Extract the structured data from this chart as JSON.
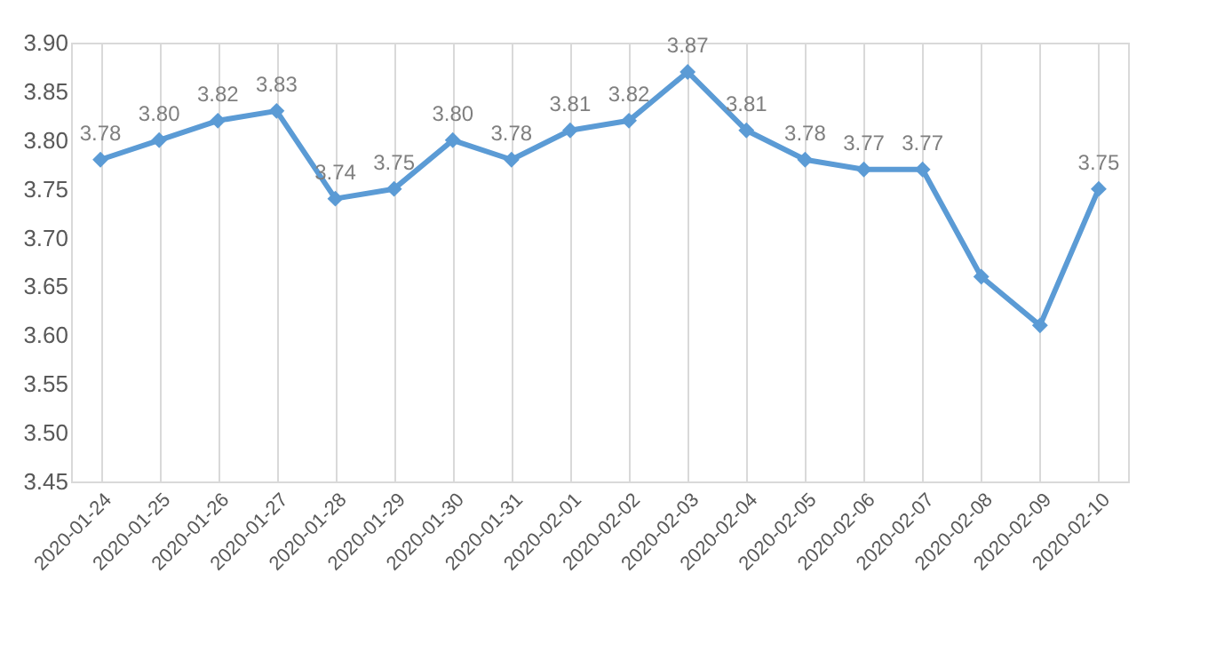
{
  "chart_data": {
    "type": "line",
    "categories": [
      "2020-01-24",
      "2020-01-25",
      "2020-01-26",
      "2020-01-27",
      "2020-01-28",
      "2020-01-29",
      "2020-01-30",
      "2020-01-31",
      "2020-02-01",
      "2020-02-02",
      "2020-02-03",
      "2020-02-04",
      "2020-02-05",
      "2020-02-06",
      "2020-02-07",
      "2020-02-08",
      "2020-02-09",
      "2020-02-10"
    ],
    "series": [
      {
        "color": "#5b9bd5",
        "values": [
          3.78,
          3.8,
          3.82,
          3.83,
          3.74,
          3.75,
          3.8,
          3.78,
          3.81,
          3.82,
          3.87,
          3.81,
          3.78,
          3.77,
          3.77,
          3.66,
          3.61,
          3.75
        ],
        "value_labels": [
          "3.78",
          "3.80",
          "3.82",
          "3.83",
          "3.74",
          "3.75",
          "3.80",
          "3.78",
          "3.81",
          "3.82",
          "3.87",
          "3.81",
          "3.78",
          "3.77",
          "3.77",
          null,
          null,
          "3.75"
        ]
      }
    ],
    "ylim": [
      3.45,
      3.9
    ],
    "yticks": [
      {
        "value": 3.45,
        "label": "3.45"
      },
      {
        "value": 3.5,
        "label": "3.50"
      },
      {
        "value": 3.55,
        "label": "3.55"
      },
      {
        "value": 3.6,
        "label": "3.60"
      },
      {
        "value": 3.65,
        "label": "3.65"
      },
      {
        "value": 3.7,
        "label": "3.70"
      },
      {
        "value": 3.75,
        "label": "3.75"
      },
      {
        "value": 3.8,
        "label": "3.80"
      },
      {
        "value": 3.85,
        "label": "3.85"
      },
      {
        "value": 3.9,
        "label": "3.90"
      }
    ],
    "grid": "x",
    "marker": "diamond",
    "line_style": "solid"
  }
}
